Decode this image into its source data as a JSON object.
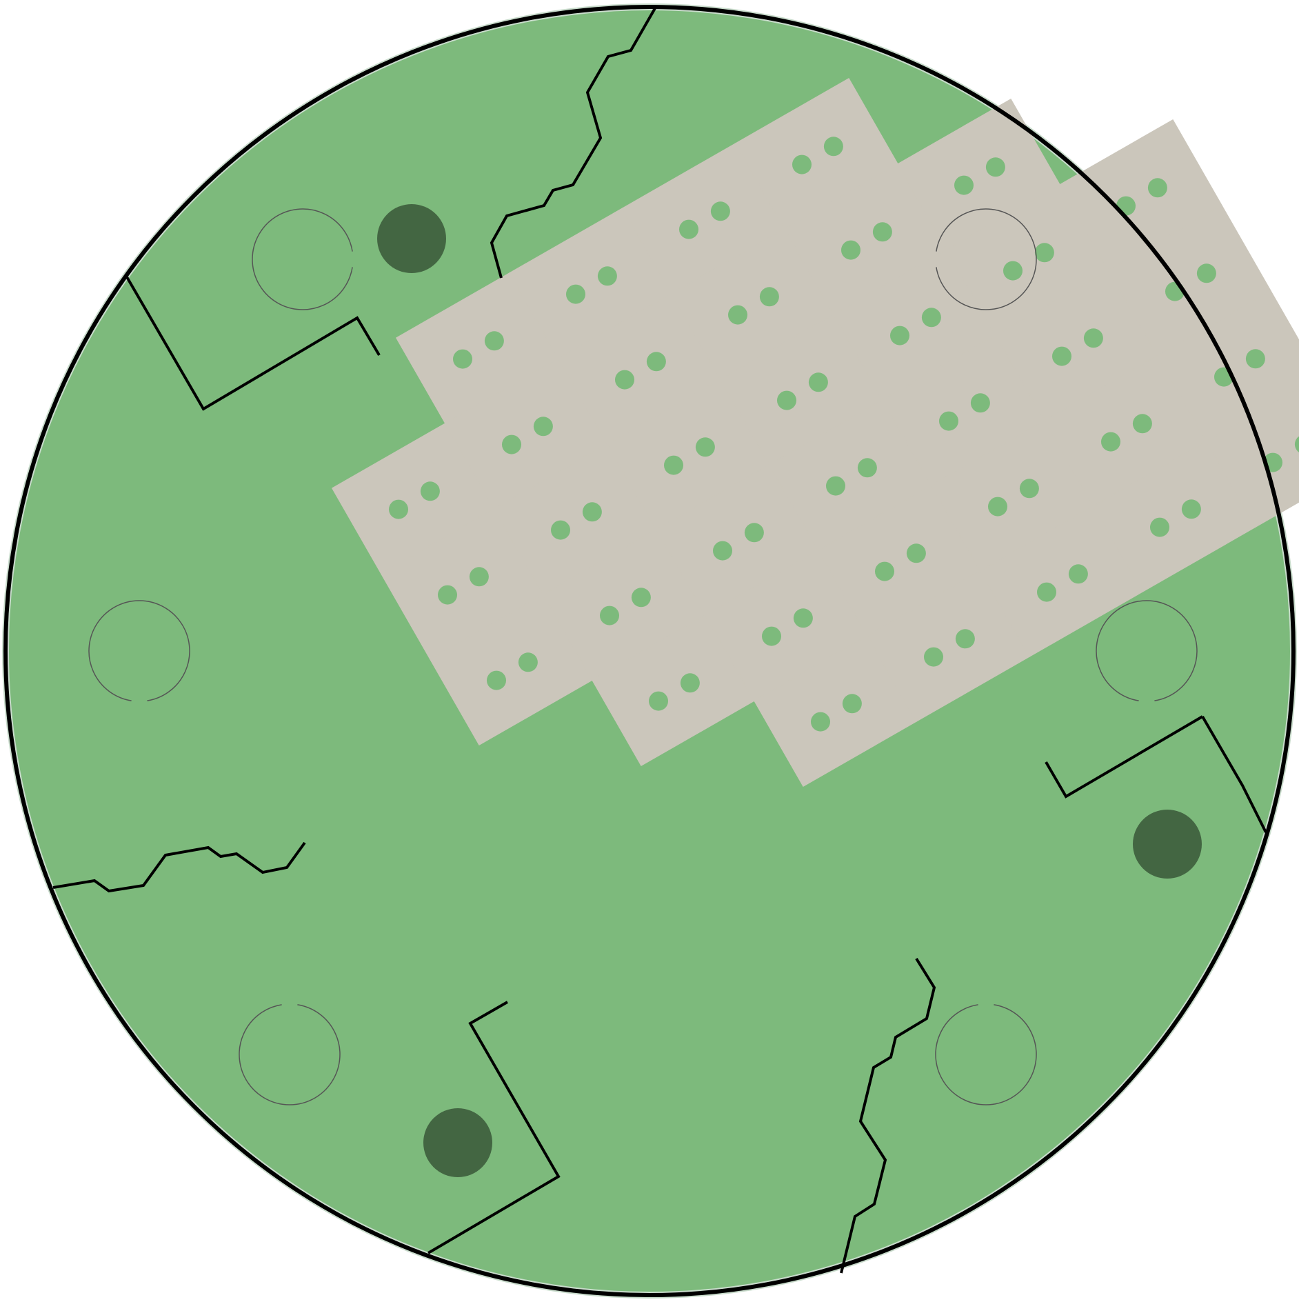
{
  "colors": {
    "background": "#ffffff",
    "field": "#7dba7c",
    "field_edge": "#c9dccc",
    "tile": "#cbc6bb",
    "tile_dot": "#7dba7c",
    "marker": "#436642",
    "boundary_line": "#000000",
    "ring_line": "#555555"
  },
  "diagram": {
    "shape": "circular plan",
    "tile_grid": {
      "rows": 6,
      "columns": 7,
      "dots_per_tile": 2,
      "missing_cells": [
        [
          0,
          0
        ],
        [
          0,
          5
        ],
        [
          0,
          6
        ],
        [
          1,
          6
        ],
        [
          4,
          0
        ],
        [
          5,
          0
        ],
        [
          5,
          1
        ]
      ]
    },
    "dark_markers": 3,
    "open_rings": 6,
    "boundary_lines": 6
  }
}
